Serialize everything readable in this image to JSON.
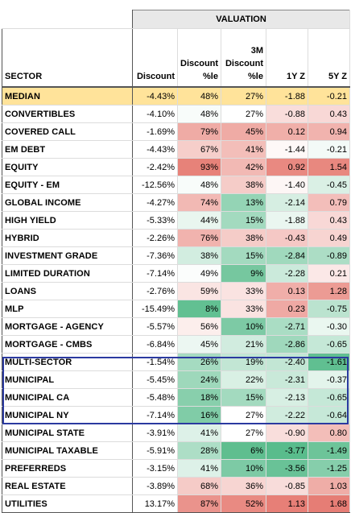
{
  "table": {
    "group_header": "VALUATION",
    "columns": [
      "SECTOR",
      "Discount",
      "Discount\n%le",
      "3M\nDiscount\n%le",
      "1Y Z",
      "5Y Z"
    ],
    "median": {
      "sector": "MEDIAN",
      "discount": "-4.43%",
      "discount_pct": "48%",
      "disc3m_pct": "27%",
      "z1y": "-1.88",
      "z5y": "-0.21"
    },
    "rows": [
      {
        "sector": "CONVERTIBLES",
        "discount": "-4.10%",
        "discount_pct": "48%",
        "disc3m_pct": "27%",
        "z1y": "-0.88",
        "z5y": "0.43"
      },
      {
        "sector": "COVERED CALL",
        "discount": "-1.69%",
        "discount_pct": "79%",
        "disc3m_pct": "45%",
        "z1y": "0.12",
        "z5y": "0.94"
      },
      {
        "sector": "EM DEBT",
        "discount": "-4.43%",
        "discount_pct": "67%",
        "disc3m_pct": "41%",
        "z1y": "-1.44",
        "z5y": "-0.21"
      },
      {
        "sector": "EQUITY",
        "discount": "-2.42%",
        "discount_pct": "93%",
        "disc3m_pct": "42%",
        "z1y": "0.92",
        "z5y": "1.54"
      },
      {
        "sector": "EQUITY - EM",
        "discount": "-12.56%",
        "discount_pct": "48%",
        "disc3m_pct": "38%",
        "z1y": "-1.40",
        "z5y": "-0.45"
      },
      {
        "sector": "GLOBAL INCOME",
        "discount": "-4.27%",
        "discount_pct": "74%",
        "disc3m_pct": "13%",
        "z1y": "-2.14",
        "z5y": "0.79"
      },
      {
        "sector": "HIGH YIELD",
        "discount": "-5.33%",
        "discount_pct": "44%",
        "disc3m_pct": "15%",
        "z1y": "-1.88",
        "z5y": "0.43"
      },
      {
        "sector": "HYBRID",
        "discount": "-2.26%",
        "discount_pct": "76%",
        "disc3m_pct": "38%",
        "z1y": "-0.43",
        "z5y": "0.49"
      },
      {
        "sector": "INVESTMENT GRADE",
        "discount": "-7.36%",
        "discount_pct": "38%",
        "disc3m_pct": "15%",
        "z1y": "-2.84",
        "z5y": "-0.89"
      },
      {
        "sector": "LIMITED DURATION",
        "discount": "-7.14%",
        "discount_pct": "49%",
        "disc3m_pct": "9%",
        "z1y": "-2.28",
        "z5y": "0.21"
      },
      {
        "sector": "LOANS",
        "discount": "-2.76%",
        "discount_pct": "59%",
        "disc3m_pct": "33%",
        "z1y": "0.13",
        "z5y": "1.28"
      },
      {
        "sector": "MLP",
        "discount": "-15.49%",
        "discount_pct": "8%",
        "disc3m_pct": "33%",
        "z1y": "0.23",
        "z5y": "-0.75"
      },
      {
        "sector": "MORTGAGE - AGENCY",
        "discount": "-5.57%",
        "discount_pct": "56%",
        "disc3m_pct": "10%",
        "z1y": "-2.71",
        "z5y": "-0.30"
      },
      {
        "sector": "MORTGAGE - CMBS",
        "discount": "-6.84%",
        "discount_pct": "45%",
        "disc3m_pct": "21%",
        "z1y": "-2.86",
        "z5y": "-0.65"
      },
      {
        "sector": "MULTI-SECTOR",
        "discount": "-1.54%",
        "discount_pct": "26%",
        "disc3m_pct": "19%",
        "z1y": "-2.40",
        "z5y": "-1.61"
      },
      {
        "sector": "MUNICIPAL",
        "discount": "-5.45%",
        "discount_pct": "24%",
        "disc3m_pct": "22%",
        "z1y": "-2.31",
        "z5y": "-0.37"
      },
      {
        "sector": "MUNICIPAL CA",
        "discount": "-5.48%",
        "discount_pct": "18%",
        "disc3m_pct": "15%",
        "z1y": "-2.13",
        "z5y": "-0.65"
      },
      {
        "sector": "MUNICIPAL NY",
        "discount": "-7.14%",
        "discount_pct": "16%",
        "disc3m_pct": "27%",
        "z1y": "-2.22",
        "z5y": "-0.64"
      },
      {
        "sector": "MUNICIPAL STATE",
        "discount": "-3.91%",
        "discount_pct": "41%",
        "disc3m_pct": "27%",
        "z1y": "-0.90",
        "z5y": "0.80"
      },
      {
        "sector": "MUNICIPAL TAXABLE",
        "discount": "-5.91%",
        "discount_pct": "28%",
        "disc3m_pct": "6%",
        "z1y": "-3.77",
        "z5y": "-1.49"
      },
      {
        "sector": "PREFERREDS",
        "discount": "-3.15%",
        "discount_pct": "41%",
        "disc3m_pct": "10%",
        "z1y": "-3.56",
        "z5y": "-1.25"
      },
      {
        "sector": "REAL ESTATE",
        "discount": "-3.89%",
        "discount_pct": "68%",
        "disc3m_pct": "36%",
        "z1y": "-0.85",
        "z5y": "1.03"
      },
      {
        "sector": "UTILITIES",
        "discount": "13.17%",
        "discount_pct": "87%",
        "disc3m_pct": "52%",
        "z1y": "1.13",
        "z5y": "1.68"
      }
    ],
    "colors": {
      "median_bg": "#ffe39a",
      "high": "#e67c73",
      "low": "#57bb8a",
      "mid": "#ffffff",
      "box": "#2b3aa0"
    }
  }
}
